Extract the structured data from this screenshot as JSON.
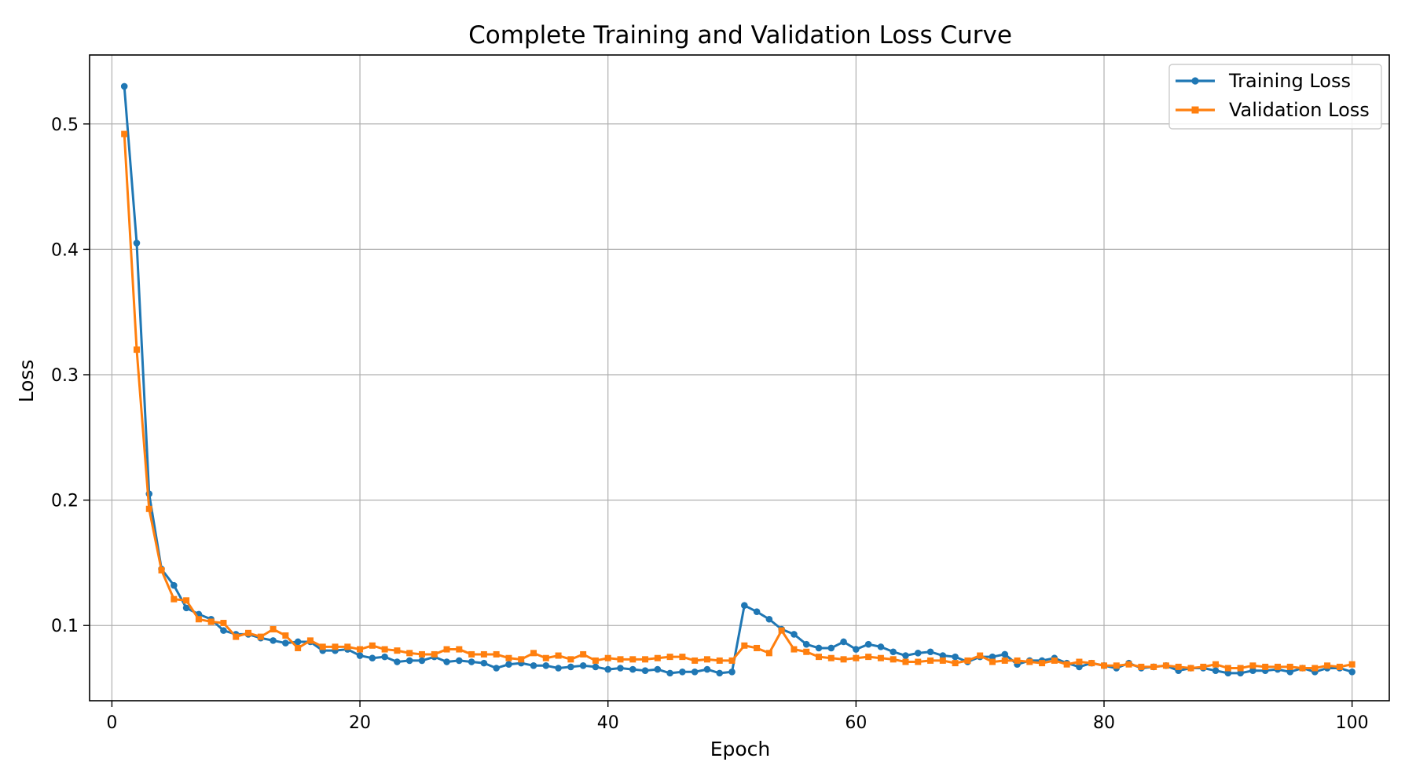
{
  "chart_data": {
    "type": "line",
    "title": "Complete Training and Validation Loss Curve",
    "xlabel": "Epoch",
    "ylabel": "Loss",
    "xlim": [
      -1.8,
      103.0
    ],
    "ylim": [
      0.04,
      0.555
    ],
    "xticks": [
      0,
      20,
      40,
      60,
      80,
      100
    ],
    "xtick_labels": [
      "0",
      "20",
      "40",
      "60",
      "80",
      "100"
    ],
    "yticks": [
      0.1,
      0.2,
      0.3,
      0.4,
      0.5
    ],
    "ytick_labels": [
      "0.1",
      "0.2",
      "0.3",
      "0.4",
      "0.5"
    ],
    "grid": true,
    "legend_position": "top-right",
    "x": [
      1,
      2,
      3,
      4,
      5,
      6,
      7,
      8,
      9,
      10,
      11,
      12,
      13,
      14,
      15,
      16,
      17,
      18,
      19,
      20,
      21,
      22,
      23,
      24,
      25,
      26,
      27,
      28,
      29,
      30,
      31,
      32,
      33,
      34,
      35,
      36,
      37,
      38,
      39,
      40,
      41,
      42,
      43,
      44,
      45,
      46,
      47,
      48,
      49,
      50,
      51,
      52,
      53,
      54,
      55,
      56,
      57,
      58,
      59,
      60,
      61,
      62,
      63,
      64,
      65,
      66,
      67,
      68,
      69,
      70,
      71,
      72,
      73,
      74,
      75,
      76,
      77,
      78,
      79,
      80,
      81,
      82,
      83,
      84,
      85,
      86,
      87,
      88,
      89,
      90,
      91,
      92,
      93,
      94,
      95,
      96,
      97,
      98,
      99,
      100
    ],
    "series": [
      {
        "name": "Training Loss",
        "color": "#1f77b4",
        "marker": "circle",
        "values": [
          0.53,
          0.405,
          0.205,
          0.145,
          0.132,
          0.114,
          0.109,
          0.105,
          0.096,
          0.093,
          0.093,
          0.09,
          0.088,
          0.086,
          0.087,
          0.087,
          0.08,
          0.08,
          0.081,
          0.076,
          0.074,
          0.075,
          0.071,
          0.072,
          0.072,
          0.075,
          0.071,
          0.072,
          0.071,
          0.07,
          0.066,
          0.069,
          0.07,
          0.068,
          0.068,
          0.066,
          0.067,
          0.068,
          0.067,
          0.065,
          0.066,
          0.065,
          0.064,
          0.065,
          0.062,
          0.063,
          0.063,
          0.065,
          0.062,
          0.063,
          0.116,
          0.111,
          0.105,
          0.097,
          0.093,
          0.085,
          0.082,
          0.082,
          0.087,
          0.081,
          0.085,
          0.083,
          0.079,
          0.076,
          0.078,
          0.079,
          0.076,
          0.075,
          0.071,
          0.075,
          0.075,
          0.077,
          0.069,
          0.072,
          0.072,
          0.074,
          0.07,
          0.067,
          0.07,
          0.068,
          0.066,
          0.07,
          0.066,
          0.067,
          0.068,
          0.064,
          0.066,
          0.066,
          0.064,
          0.062,
          0.062,
          0.064,
          0.064,
          0.065,
          0.063,
          0.066,
          0.063,
          0.066,
          0.066,
          0.063
        ]
      },
      {
        "name": "Validation Loss",
        "color": "#ff7f0e",
        "marker": "square",
        "values": [
          0.492,
          0.32,
          0.193,
          0.144,
          0.121,
          0.12,
          0.105,
          0.103,
          0.102,
          0.091,
          0.094,
          0.091,
          0.097,
          0.092,
          0.082,
          0.088,
          0.083,
          0.083,
          0.083,
          0.081,
          0.084,
          0.081,
          0.08,
          0.078,
          0.077,
          0.077,
          0.081,
          0.081,
          0.077,
          0.077,
          0.077,
          0.074,
          0.073,
          0.078,
          0.074,
          0.076,
          0.073,
          0.077,
          0.072,
          0.074,
          0.073,
          0.073,
          0.073,
          0.074,
          0.075,
          0.075,
          0.072,
          0.073,
          0.072,
          0.072,
          0.084,
          0.082,
          0.078,
          0.096,
          0.081,
          0.079,
          0.075,
          0.074,
          0.073,
          0.074,
          0.075,
          0.074,
          0.073,
          0.071,
          0.071,
          0.072,
          0.072,
          0.07,
          0.072,
          0.076,
          0.071,
          0.072,
          0.072,
          0.071,
          0.07,
          0.072,
          0.069,
          0.071,
          0.07,
          0.068,
          0.068,
          0.069,
          0.067,
          0.067,
          0.068,
          0.067,
          0.066,
          0.067,
          0.069,
          0.066,
          0.066,
          0.068,
          0.067,
          0.067,
          0.067,
          0.066,
          0.066,
          0.068,
          0.067,
          0.069
        ]
      }
    ]
  }
}
